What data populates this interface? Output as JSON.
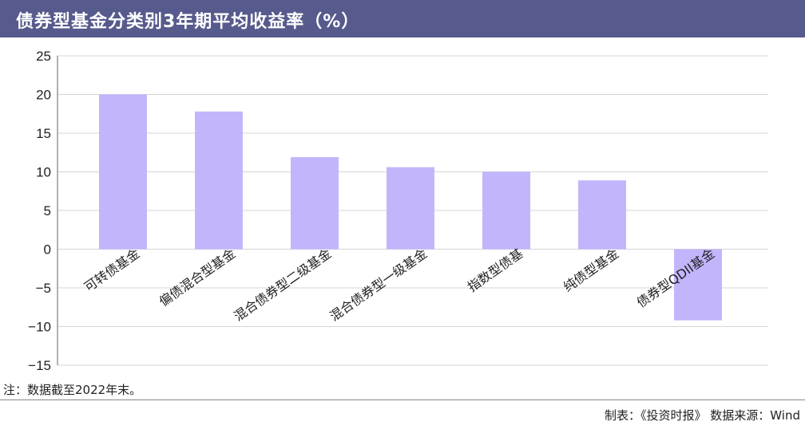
{
  "title": "债券型基金分类别3年期平均收益率（%）",
  "note": "注：数据截至2022年末。",
  "source": "制表：《投资时报》 数据来源：Wind",
  "colors": {
    "bar": "#c3b5fc",
    "header": "#575a8c",
    "grid": "#d4d4d4",
    "axis": "#666666"
  },
  "chart_data": {
    "type": "bar",
    "title": "债券型基金分类别3年期平均收益率（%）",
    "xlabel": "",
    "ylabel": "",
    "categories": [
      "可转债基金",
      "偏债混合型基金",
      "混合债券型二级基金",
      "混合债券型一级基金",
      "指数型债基",
      "纯债型基金",
      "债券型QDII基金"
    ],
    "values": [
      20.0,
      17.8,
      11.9,
      10.6,
      10.0,
      8.9,
      -9.2
    ],
    "ylim": [
      -15,
      25
    ],
    "yticks": [
      25,
      20,
      15,
      10,
      5,
      0,
      -5,
      -10,
      -15
    ],
    "ytick_labels": [
      "25",
      "20",
      "15",
      "10",
      "5",
      "0",
      "−5",
      "−10",
      "−15"
    ],
    "grid": true,
    "legend": "none"
  }
}
